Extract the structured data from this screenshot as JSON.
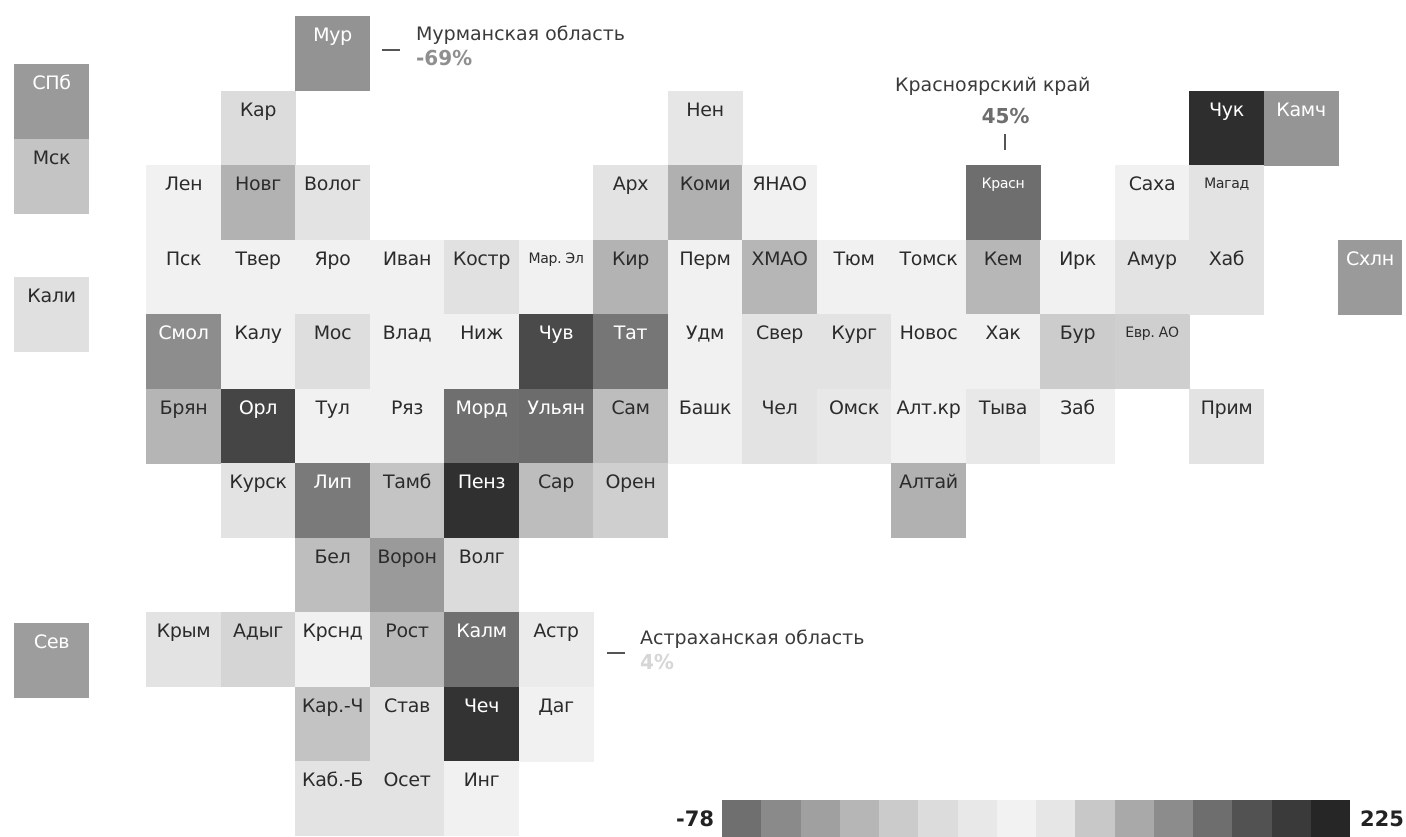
{
  "regions": [
    {
      "id": "spb",
      "label": "СПб",
      "shade": "#9a9a9a"
    },
    {
      "id": "msk",
      "label": "Мск",
      "shade": "#c4c4c4"
    },
    {
      "id": "kali",
      "label": "Кали",
      "shade": "#e0e0e0"
    },
    {
      "id": "sev",
      "label": "Сев",
      "shade": "#9d9d9d"
    },
    {
      "id": "mur",
      "label": "Мур",
      "shade": "#939393"
    },
    {
      "id": "kar",
      "label": "Кар",
      "shade": "#dcdcdc"
    },
    {
      "id": "len",
      "label": "Лен",
      "shade": "#f1f1f1"
    },
    {
      "id": "novg",
      "label": "Новг",
      "shade": "#b2b2b2"
    },
    {
      "id": "volog",
      "label": "Волог",
      "shade": "#e3e3e3"
    },
    {
      "id": "psk",
      "label": "Пск",
      "shade": "#f1f1f1"
    },
    {
      "id": "tver",
      "label": "Твер",
      "shade": "#f1f1f1"
    },
    {
      "id": "yaro",
      "label": "Яро",
      "shade": "#f1f1f1"
    },
    {
      "id": "ivan",
      "label": "Иван",
      "shade": "#f1f1f1"
    },
    {
      "id": "kostr",
      "label": "Костр",
      "shade": "#e1e1e1"
    },
    {
      "id": "marel",
      "label": "Мар. Эл",
      "shade": "#f1f1f1"
    },
    {
      "id": "smol",
      "label": "Смол",
      "shade": "#8d8d8d"
    },
    {
      "id": "kalu",
      "label": "Калу",
      "shade": "#f1f1f1"
    },
    {
      "id": "mos",
      "label": "Мос",
      "shade": "#dedede"
    },
    {
      "id": "vlad",
      "label": "Влад",
      "shade": "#f1f1f1"
    },
    {
      "id": "nizh",
      "label": "Ниж",
      "shade": "#f1f1f1"
    },
    {
      "id": "chuv",
      "label": "Чув",
      "shade": "#4a4a4a"
    },
    {
      "id": "bryan",
      "label": "Брян",
      "shade": "#b5b5b5"
    },
    {
      "id": "orl",
      "label": "Орл",
      "shade": "#454545"
    },
    {
      "id": "tul",
      "label": "Тул",
      "shade": "#f1f1f1"
    },
    {
      "id": "ryaz",
      "label": "Ряз",
      "shade": "#f1f1f1"
    },
    {
      "id": "mord",
      "label": "Морд",
      "shade": "#6f6f6f"
    },
    {
      "id": "ulyan",
      "label": "Ульян",
      "shade": "#6c6c6c"
    },
    {
      "id": "kursk",
      "label": "Курск",
      "shade": "#e3e3e3"
    },
    {
      "id": "lip",
      "label": "Лип",
      "shade": "#7a7a7a"
    },
    {
      "id": "tamb",
      "label": "Тамб",
      "shade": "#c4c4c4"
    },
    {
      "id": "penz",
      "label": "Пенз",
      "shade": "#303030"
    },
    {
      "id": "sar",
      "label": "Сар",
      "shade": "#bdbdbd"
    },
    {
      "id": "bel",
      "label": "Бел",
      "shade": "#bebebe"
    },
    {
      "id": "voron",
      "label": "Ворон",
      "shade": "#9a9a9a"
    },
    {
      "id": "volg",
      "label": "Волг",
      "shade": "#dbdbdb"
    },
    {
      "id": "krym",
      "label": "Крым",
      "shade": "#e3e3e3"
    },
    {
      "id": "adyg",
      "label": "Адыг",
      "shade": "#d5d5d5"
    },
    {
      "id": "krsnd",
      "label": "Крснд",
      "shade": "#f1f1f1"
    },
    {
      "id": "rost",
      "label": "Рост",
      "shade": "#b9b9b9"
    },
    {
      "id": "kalm",
      "label": "Калм",
      "shade": "#707070"
    },
    {
      "id": "astr",
      "label": "Астр",
      "shade": "#ebebeb"
    },
    {
      "id": "karch",
      "label": "Кар.-Ч",
      "shade": "#c3c3c3"
    },
    {
      "id": "stav",
      "label": "Став",
      "shade": "#e3e3e3"
    },
    {
      "id": "chech",
      "label": "Чеч",
      "shade": "#333333"
    },
    {
      "id": "dag",
      "label": "Даг",
      "shade": "#f1f1f1"
    },
    {
      "id": "kabb",
      "label": "Каб.-Б",
      "shade": "#e3e3e3"
    },
    {
      "id": "oset",
      "label": "Осет",
      "shade": "#e3e3e3"
    },
    {
      "id": "ing",
      "label": "Инг",
      "shade": "#f1f1f1"
    },
    {
      "id": "arkh",
      "label": "Арх",
      "shade": "#e3e3e3"
    },
    {
      "id": "kir",
      "label": "Кир",
      "shade": "#b3b3b3"
    },
    {
      "id": "tat",
      "label": "Тат",
      "shade": "#767676"
    },
    {
      "id": "sam",
      "label": "Сам",
      "shade": "#bdbdbd"
    },
    {
      "id": "oren",
      "label": "Орен",
      "shade": "#cfcfcf"
    },
    {
      "id": "nen",
      "label": "Нен",
      "shade": "#e6e6e6"
    },
    {
      "id": "komi",
      "label": "Коми",
      "shade": "#b0b0b0"
    },
    {
      "id": "perm",
      "label": "Перм",
      "shade": "#f1f1f1"
    },
    {
      "id": "udm",
      "label": "Удм",
      "shade": "#f1f1f1"
    },
    {
      "id": "bashk",
      "label": "Башк",
      "shade": "#f1f1f1"
    },
    {
      "id": "yanao",
      "label": "ЯНАО",
      "shade": "#f1f1f1"
    },
    {
      "id": "hmao",
      "label": "ХМАО",
      "shade": "#b6b6b6"
    },
    {
      "id": "sver",
      "label": "Свер",
      "shade": "#e3e3e3"
    },
    {
      "id": "chel",
      "label": "Чел",
      "shade": "#e3e3e3"
    },
    {
      "id": "tyum",
      "label": "Тюм",
      "shade": "#f1f1f1"
    },
    {
      "id": "kurg",
      "label": "Кург",
      "shade": "#e3e3e3"
    },
    {
      "id": "omsk",
      "label": "Омск",
      "shade": "#e8e8e8"
    },
    {
      "id": "tomsk",
      "label": "Томск",
      "shade": "#f1f1f1"
    },
    {
      "id": "novos",
      "label": "Новос",
      "shade": "#f1f1f1"
    },
    {
      "id": "altkr",
      "label": "Алт.кр",
      "shade": "#f1f1f1"
    },
    {
      "id": "altai",
      "label": "Алтай",
      "shade": "#b1b1b1"
    },
    {
      "id": "krasn",
      "label": "Красн",
      "shade": "#6e6e6e"
    },
    {
      "id": "kem",
      "label": "Кем",
      "shade": "#b7b7b7"
    },
    {
      "id": "hak",
      "label": "Хак",
      "shade": "#f1f1f1"
    },
    {
      "id": "tyva",
      "label": "Тыва",
      "shade": "#e8e8e8"
    },
    {
      "id": "irk",
      "label": "Ирк",
      "shade": "#f1f1f1"
    },
    {
      "id": "bur",
      "label": "Бур",
      "shade": "#cccccc"
    },
    {
      "id": "zab",
      "label": "Заб",
      "shade": "#f1f1f1"
    },
    {
      "id": "sakha",
      "label": "Саха",
      "shade": "#f1f1f1"
    },
    {
      "id": "amur",
      "label": "Амур",
      "shade": "#e3e3e3"
    },
    {
      "id": "evrao",
      "label": "Евр. АО",
      "shade": "#cfcfcf"
    },
    {
      "id": "chuk",
      "label": "Чук",
      "shade": "#2e2e2e"
    },
    {
      "id": "magad",
      "label": "Магад",
      "shade": "#e3e3e3"
    },
    {
      "id": "hab",
      "label": "Хаб",
      "shade": "#e3e3e3"
    },
    {
      "id": "prim",
      "label": "Прим",
      "shade": "#e3e3e3"
    },
    {
      "id": "kamch",
      "label": "Камч",
      "shade": "#959595"
    },
    {
      "id": "shln",
      "label": "Схлн",
      "shade": "#9a9a9a"
    }
  ],
  "callouts": {
    "murmansk": {
      "name": "Мурманская область",
      "value": "-69%"
    },
    "krasnoyarsk": {
      "name": "Красноярский край",
      "value": "45%"
    },
    "astrakhan": {
      "name": "Астраханская область",
      "value": "4%"
    }
  },
  "legend": {
    "min": "-78",
    "max": "225",
    "swatches": [
      "#6f6f6f",
      "#8a8a8a",
      "#a0a0a0",
      "#b6b6b6",
      "#cbcbcb",
      "#dcdcdc",
      "#e8e8e8",
      "#f2f2f2",
      "#e6e6e6",
      "#c8c8c8",
      "#a9a9a9",
      "#8c8c8c",
      "#6e6e6e",
      "#525252",
      "#3a3a3a",
      "#262626"
    ]
  }
}
